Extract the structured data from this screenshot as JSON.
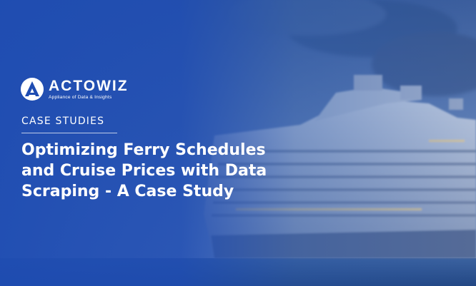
{
  "brand": {
    "name": "ACTOWIZ",
    "tagline": "Appliance of Data & Insights"
  },
  "category": "CASE STUDIES",
  "title": {
    "line1": "Optimizing Ferry Schedules",
    "line2": "and Cruise Prices with Data",
    "line3": "Scraping - A Case Study"
  },
  "colors": {
    "overlay_blue": "#1e4cb2",
    "text": "#ffffff",
    "sea": "#2a4f8a"
  }
}
